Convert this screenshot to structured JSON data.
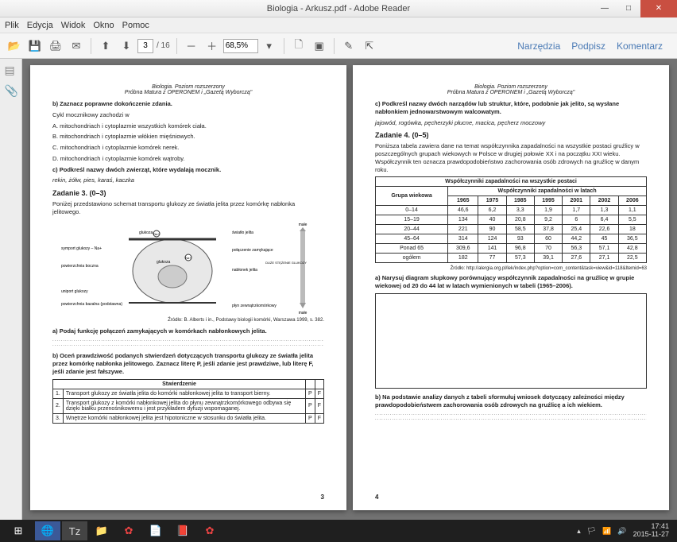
{
  "window": {
    "title": "Biologia - Arkusz.pdf - Adobe Reader"
  },
  "menu": {
    "plik": "Plik",
    "edycja": "Edycja",
    "widok": "Widok",
    "okno": "Okno",
    "pomoc": "Pomoc"
  },
  "toolbar": {
    "page_current": "3",
    "page_total": "/ 16",
    "zoom": "68,5%"
  },
  "rightlinks": {
    "narzedzia": "Narzędzia",
    "podpisz": "Podpisz",
    "komentarz": "Komentarz"
  },
  "doc": {
    "header_line1": "Biologia. Poziom rozszerzony",
    "header_line2": "Próbna Matura z OPERONEM i „Gazetą Wyborczą\"",
    "left": {
      "b_intro": "b) Zaznacz poprawne dokończenie zdania.",
      "b_text": "Cykl mocznikowy zachodzi w",
      "b_A": "A. mitochondriach i cytoplazmie wszystkich komórek ciała.",
      "b_B": "B. mitochondriach i cytoplazmie włókien mięśniowych.",
      "b_C": "C. mitochondriach i cytoplazmie komórek nerek.",
      "b_D": "D. mitochondriach i cytoplazmie komórek wątroby.",
      "c_intro": "c) Podkreśl nazwy dwóch zwierząt, które wydalają mocznik.",
      "c_list": "rekin, żółw, pies, karaś, kaczka",
      "zad3_title": "Zadanie 3. (0–3)",
      "zad3_intro": "Poniżej przedstawiono schemat transportu glukozy ze światła jelita przez komórkę nabłonka jelitowego.",
      "diagram": {
        "labels": {
          "glukoza": "glukoza",
          "Na": "Na+",
          "swiatlo": "światło jelita",
          "pol_zam": "połączenie zamykające",
          "symport": "symport glukozy – Na+",
          "pow_bocz": "powierzchnia boczna",
          "nablonek": "nabłonek jelita",
          "uniport": "uniport glukozy",
          "bazalna": "powierzchnia bazalna (podstawna)",
          "plyn": "płyn zewnątrzkomórkowy",
          "male_top": "małe",
          "male_bot": "małe",
          "stezenie": "DUŻE STĘŻENIE GLUKOZY"
        }
      },
      "zrodlo": "Źródło: B. Alberts i in., Podstawy biologii komórki, Warszawa 1999, s. 382.",
      "a_task": "a) Podaj funkcję połączeń zamykających w komórkach nabłonkowych jelita.",
      "b_task": "b) Oceń prawdziwość podanych stwierdzeń dotyczących transportu glukozy ze światła jelita przez komórkę nabłonka jelitowego. Zaznacz literę P, jeśli zdanie jest prawdziwe, lub literę F, jeśli zdanie jest fałszywe.",
      "pf_table": {
        "header": "Stwierdzenie",
        "rows": [
          {
            "n": "1.",
            "text": "Transport glukozy ze światła jelita do komórki nabłonkowej jelita to transport bierny.",
            "p": "P",
            "f": "F"
          },
          {
            "n": "2.",
            "text": "Transport glukozy z komórki nabłonkowej jelita do płynu zewnątrzkomórkowego odbywa się dzięki białku przenośnikowemu i jest przykładem dyfuzji wspomaganej.",
            "p": "P",
            "f": "F"
          },
          {
            "n": "3.",
            "text": "Wnętrze komórki nabłonkowej jelita jest hipotoniczne w stosunku do światła jelita.",
            "p": "P",
            "f": "F"
          }
        ]
      },
      "pagenum": "3"
    },
    "right": {
      "c_intro": "c) Podkreśl nazwy dwóch narządów lub struktur, które, podobnie jak jelito, są wysłane nabłonkiem jednowarstwowym walcowatym.",
      "c_list": "jajowód, rogówka, pęcherzyki płucne, macica, pęcherz moczowy",
      "zad4_title": "Zadanie 4. (0–5)",
      "zad4_intro": "Poniższa tabela zawiera dane na temat współczynnika zapadalności na wszystkie postaci gruźlicy w poszczególnych grupach wiekowych w Polsce w drugiej połowie XX i na początku XXI wieku. Współczynnik ten oznacza prawdopodobieństwo zachorowania osób zdrowych na gruźlicę w danym roku.",
      "data_table": {
        "title": "Współczynniki zapadalności na wszystkie postaci",
        "subtitle": "Współczynniki zapadalności w latach",
        "col_group": "Grupa wiekowa",
        "years": [
          "1965",
          "1975",
          "1985",
          "1995",
          "2001",
          "2002",
          "2006"
        ],
        "rows": [
          {
            "g": "0–14",
            "v": [
              "46,6",
              "6,2",
              "3,3",
              "1,9",
              "1,7",
              "1,3",
              "1,1"
            ]
          },
          {
            "g": "15–19",
            "v": [
              "134",
              "40",
              "20,8",
              "9,2",
              "6",
              "6,4",
              "5,5"
            ]
          },
          {
            "g": "20–44",
            "v": [
              "221",
              "90",
              "58,5",
              "37,8",
              "25,4",
              "22,6",
              "18"
            ]
          },
          {
            "g": "45–64",
            "v": [
              "314",
              "124",
              "93",
              "60",
              "44,2",
              "45",
              "36,5"
            ]
          },
          {
            "g": "Ponad 65",
            "v": [
              "309,6",
              "141",
              "96,8",
              "70",
              "56,3",
              "57,1",
              "42,8"
            ]
          },
          {
            "g": "ogółem",
            "v": [
              "182",
              "77",
              "57,3",
              "39,1",
              "27,6",
              "27,1",
              "22,5"
            ]
          }
        ]
      },
      "src2": "Źródło: http://alergia.org.pl/lek/index.php?option=com_content&task=view&id=118&Itemid=63",
      "a_task": "a) Narysuj diagram słupkowy porównujący współczynnik zapadalności na gruźlicę w grupie wiekowej od 20 do 44 lat w latach wymienionych w tabeli (1965–2006).",
      "b_task": "b) Na podstawie analizy danych z tabeli sformułuj wniosek dotyczący zależności między prawdopodobieństwem zachorowania osób zdrowych na gruźlicę a ich wiekiem.",
      "pagenum": "4"
    }
  },
  "clock": {
    "time": "17:41",
    "date": "2015-11-27"
  }
}
